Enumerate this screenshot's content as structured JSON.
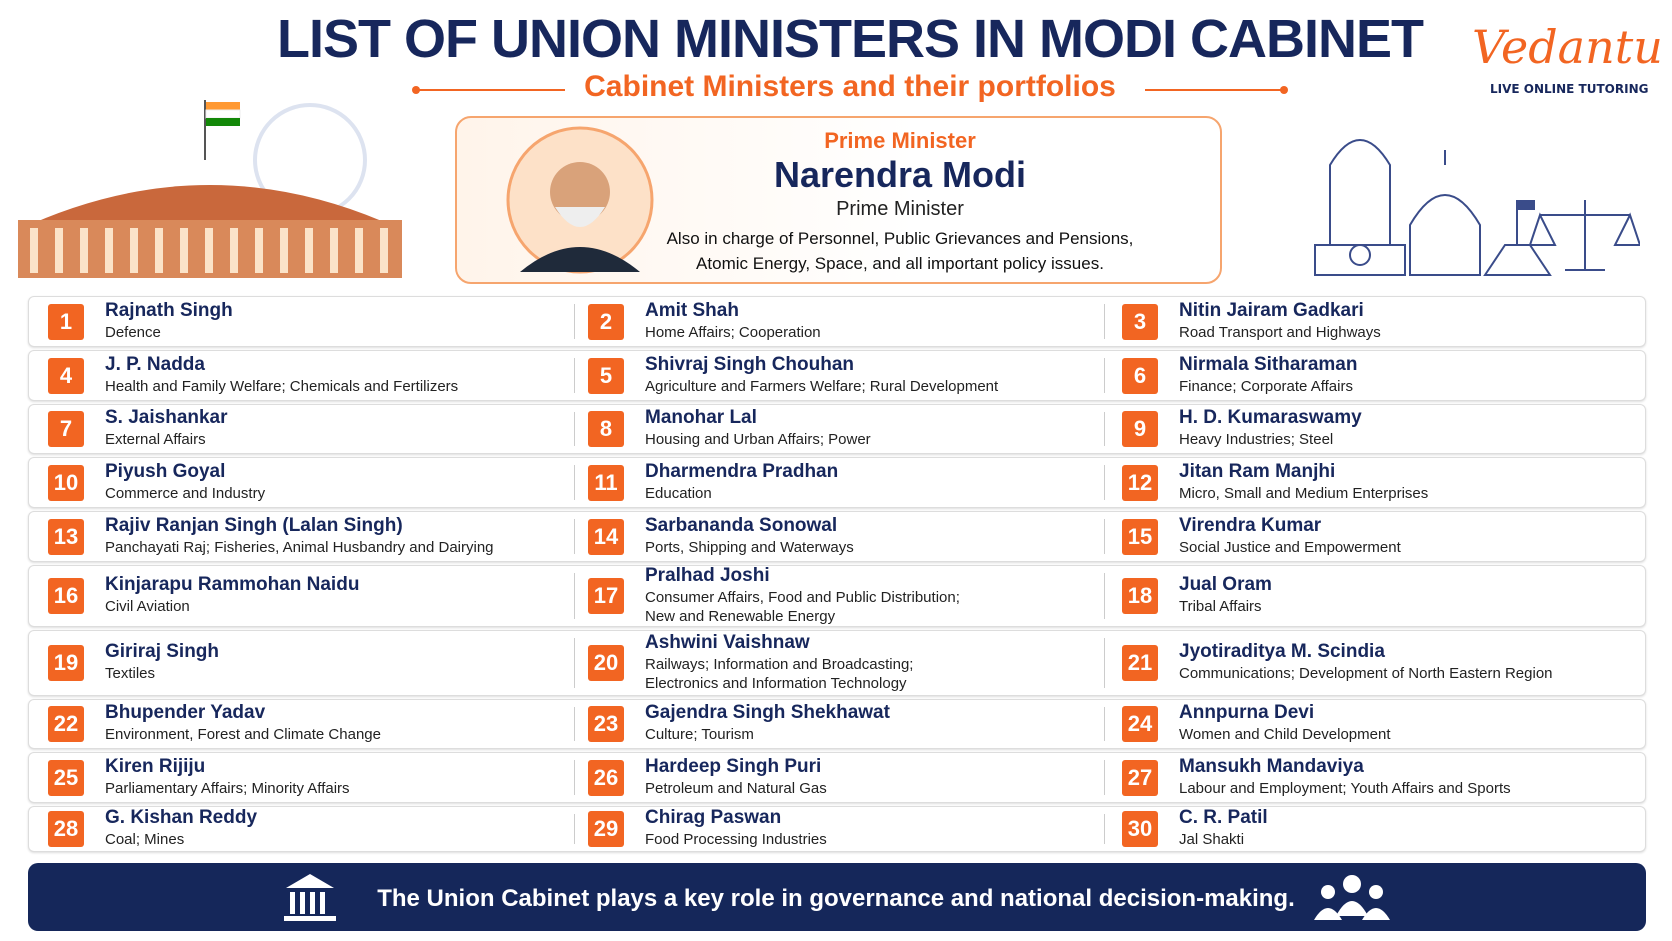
{
  "header": {
    "title": "LIST OF UNION MINISTERS IN MODI CABINET",
    "subtitle": "Cabinet Ministers and their portfolios",
    "logo": "Vedantu",
    "tagline": "LIVE ONLINE TUTORING"
  },
  "prime_minister": {
    "label": "Prime Minister",
    "name": "Narendra Modi",
    "role": "Prime Minister",
    "note": "Also in charge of Personnel, Public Grievances and Pensions,\nAtomic Energy, Space, and all important policy issues."
  },
  "ministers": [
    {
      "number": 1,
      "name": "Rajnath Singh",
      "portfolio": "Defence"
    },
    {
      "number": 2,
      "name": "Amit Shah",
      "portfolio": "Home Affairs; Cooperation"
    },
    {
      "number": 3,
      "name": "Nitin Jairam Gadkari",
      "portfolio": "Road Transport and Highways"
    },
    {
      "number": 4,
      "name": "J. P. Nadda",
      "portfolio": "Health and Family Welfare; Chemicals and Fertilizers"
    },
    {
      "number": 5,
      "name": "Shivraj Singh Chouhan",
      "portfolio": "Agriculture and Farmers Welfare; Rural Development"
    },
    {
      "number": 6,
      "name": "Nirmala Sitharaman",
      "portfolio": "Finance; Corporate Affairs"
    },
    {
      "number": 7,
      "name": "S. Jaishankar",
      "portfolio": "External Affairs"
    },
    {
      "number": 8,
      "name": "Manohar Lal",
      "portfolio": "Housing and Urban Affairs; Power"
    },
    {
      "number": 9,
      "name": "H. D. Kumaraswamy",
      "portfolio": "Heavy Industries; Steel"
    },
    {
      "number": 10,
      "name": "Piyush Goyal",
      "portfolio": "Commerce and Industry"
    },
    {
      "number": 11,
      "name": "Dharmendra Pradhan",
      "portfolio": "Education"
    },
    {
      "number": 12,
      "name": "Jitan Ram Manjhi",
      "portfolio": "Micro, Small and Medium Enterprises"
    },
    {
      "number": 13,
      "name": "Rajiv Ranjan Singh (Lalan Singh)",
      "portfolio": "Panchayati Raj; Fisheries, Animal Husbandry and Dairying"
    },
    {
      "number": 14,
      "name": "Sarbananda Sonowal",
      "portfolio": "Ports, Shipping and Waterways"
    },
    {
      "number": 15,
      "name": "Virendra Kumar",
      "portfolio": "Social Justice and Empowerment"
    },
    {
      "number": 16,
      "name": "Kinjarapu Rammohan Naidu",
      "portfolio": "Civil Aviation"
    },
    {
      "number": 17,
      "name": "Pralhad Joshi",
      "portfolio": "Consumer Affairs, Food and Public Distribution;\nNew and Renewable Energy"
    },
    {
      "number": 18,
      "name": "Jual Oram",
      "portfolio": "Tribal Affairs"
    },
    {
      "number": 19,
      "name": "Giriraj Singh",
      "portfolio": "Textiles"
    },
    {
      "number": 20,
      "name": "Ashwini Vaishnaw",
      "portfolio": "Railways; Information and Broadcasting;\nElectronics and Information Technology"
    },
    {
      "number": 21,
      "name": "Jyotiraditya M. Scindia",
      "portfolio": "Communications; Development of North Eastern Region"
    },
    {
      "number": 22,
      "name": "Bhupender Yadav",
      "portfolio": "Environment, Forest and Climate Change"
    },
    {
      "number": 23,
      "name": "Gajendra Singh Shekhawat",
      "portfolio": "Culture; Tourism"
    },
    {
      "number": 24,
      "name": "Annpurna Devi",
      "portfolio": "Women and Child Development"
    },
    {
      "number": 25,
      "name": "Kiren Rijiju",
      "portfolio": "Parliamentary Affairs; Minority Affairs"
    },
    {
      "number": 26,
      "name": "Hardeep Singh Puri",
      "portfolio": "Petroleum and Natural Gas"
    },
    {
      "number": 27,
      "name": "Mansukh Mandaviya",
      "portfolio": "Labour and Employment; Youth Affairs and Sports"
    },
    {
      "number": 28,
      "name": "G. Kishan Reddy",
      "portfolio": "Coal; Mines"
    },
    {
      "number": 29,
      "name": "Chirag Paswan",
      "portfolio": "Food Processing Industries"
    },
    {
      "number": 30,
      "name": "C. R. Patil",
      "portfolio": "Jal Shakti"
    }
  ],
  "footer": "The Union Cabinet plays a key role in governance and national decision-making."
}
